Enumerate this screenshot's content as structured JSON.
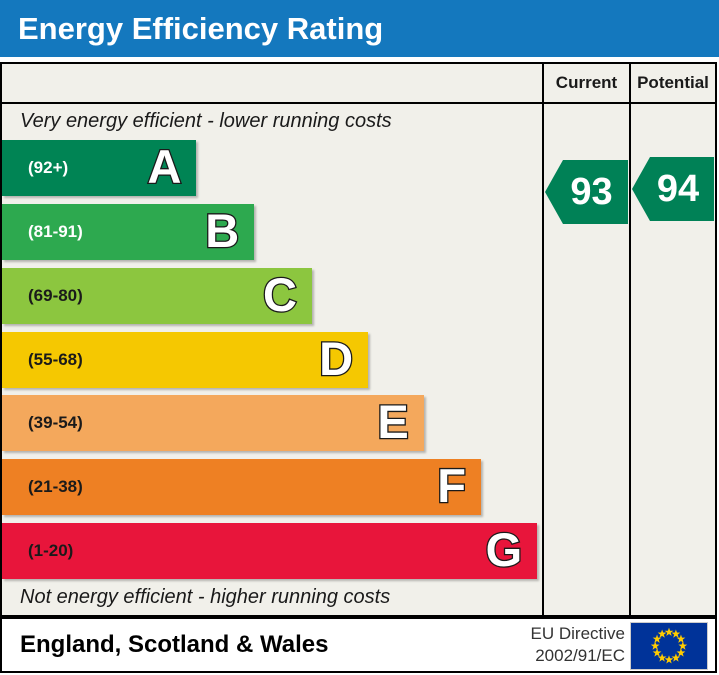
{
  "title": "Energy Efficiency Rating",
  "table": {
    "columns": {
      "current": "Current",
      "potential": "Potential"
    },
    "top_note": "Very energy efficient - lower running costs",
    "bottom_note": "Not energy efficient - higher running costs"
  },
  "chart_data": {
    "type": "bar",
    "title": "Energy Efficiency Rating",
    "orientation": "horizontal",
    "bands": [
      {
        "letter": "A",
        "range": "(92+)",
        "min": 92,
        "max": 100,
        "color": "#008454",
        "label_color": "#ffffff",
        "width_pct": 36.0
      },
      {
        "letter": "B",
        "range": "(81-91)",
        "min": 81,
        "max": 91,
        "color": "#2DA94F",
        "label_color": "#ffffff",
        "width_pct": 46.7
      },
      {
        "letter": "C",
        "range": "(69-80)",
        "min": 69,
        "max": 80,
        "color": "#8CC63F",
        "label_color": "#1a1a1a",
        "width_pct": 57.4
      },
      {
        "letter": "D",
        "range": "(55-68)",
        "min": 55,
        "max": 68,
        "color": "#F5C801",
        "label_color": "#1a1a1a",
        "width_pct": 67.8
      },
      {
        "letter": "E",
        "range": "(39-54)",
        "min": 39,
        "max": 54,
        "color": "#F4A85C",
        "label_color": "#1a1a1a",
        "width_pct": 78.1
      },
      {
        "letter": "F",
        "range": "(21-38)",
        "min": 21,
        "max": 38,
        "color": "#EE8023",
        "label_color": "#1a1a1a",
        "width_pct": 88.7
      },
      {
        "letter": "G",
        "range": "(1-20)",
        "min": 1,
        "max": 20,
        "color": "#E8153B",
        "label_color": "#1a1a1a",
        "width_pct": 99.1
      }
    ],
    "current": 93,
    "potential": 94,
    "arrow_color": "#008156"
  },
  "footer": {
    "region": "England, Scotland & Wales",
    "directive": [
      "EU Directive",
      "2002/91/EC"
    ]
  },
  "colors": {
    "title_bg": "#1478BE",
    "chart_bg": "#F1F0EA",
    "border": "#000000",
    "eu_flag_blue": "#003399",
    "eu_flag_stars": "#FFCC00"
  }
}
